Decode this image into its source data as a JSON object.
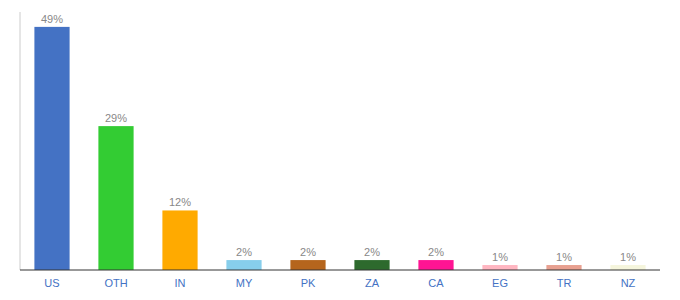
{
  "chart_data": {
    "type": "bar",
    "categories": [
      "US",
      "OTH",
      "IN",
      "MY",
      "PK",
      "ZA",
      "CA",
      "EG",
      "TR",
      "NZ"
    ],
    "values": [
      49,
      29,
      12,
      2,
      2,
      2,
      2,
      1,
      1,
      1
    ],
    "value_labels": [
      "49%",
      "29%",
      "12%",
      "2%",
      "2%",
      "2%",
      "2%",
      "1%",
      "1%",
      "1%"
    ],
    "colors": [
      "#4472c4",
      "#33cc33",
      "#ffaa00",
      "#87ceeb",
      "#b5651d",
      "#2d6a2d",
      "#ff1493",
      "#ffb6c1",
      "#e8a090",
      "#f5f5dc"
    ],
    "ylim": [
      0,
      52
    ],
    "tick_labels": "x",
    "grid": false
  }
}
